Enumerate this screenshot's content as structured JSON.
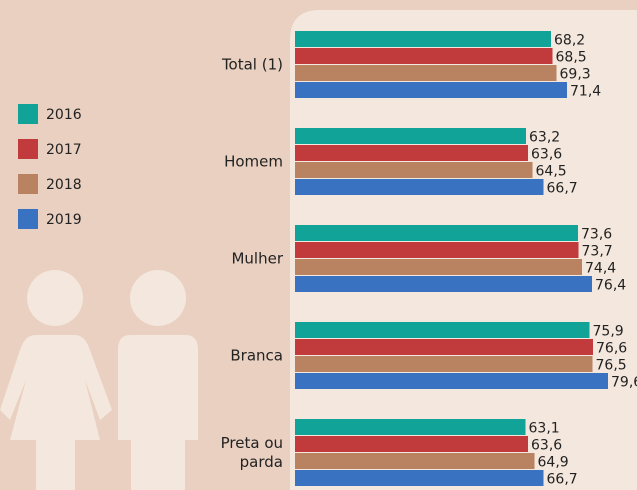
{
  "chart_data": {
    "type": "barh",
    "categories": [
      "Total (1)",
      "Homem",
      "Mulher",
      "Branca",
      "Preta ou parda"
    ],
    "series": [
      {
        "name": "2016",
        "color": "#12a398",
        "values": [
          68.2,
          63.2,
          73.6,
          75.9,
          63.1
        ],
        "value_labels": [
          "68,2",
          "63,2",
          "73,6",
          "75,9",
          "63,1"
        ]
      },
      {
        "name": "2017",
        "color": "#c13a3c",
        "values": [
          68.5,
          63.6,
          73.7,
          76.6,
          63.6
        ],
        "value_labels": [
          "68,5",
          "63,6",
          "73,7",
          "76,6",
          "63,6"
        ]
      },
      {
        "name": "2018",
        "color": "#b98260",
        "values": [
          69.3,
          64.5,
          74.4,
          76.5,
          64.9
        ],
        "value_labels": [
          "69,3",
          "64,5",
          "74,4",
          "76,5",
          "64,9"
        ]
      },
      {
        "name": "2019",
        "color": "#3a72c2",
        "values": [
          71.4,
          66.7,
          76.4,
          79.6,
          66.7
        ],
        "value_labels": [
          "71,4",
          "66,7",
          "76,4",
          "79,6",
          "66,7"
        ]
      }
    ],
    "xlim": [
      17,
      85
    ]
  }
}
